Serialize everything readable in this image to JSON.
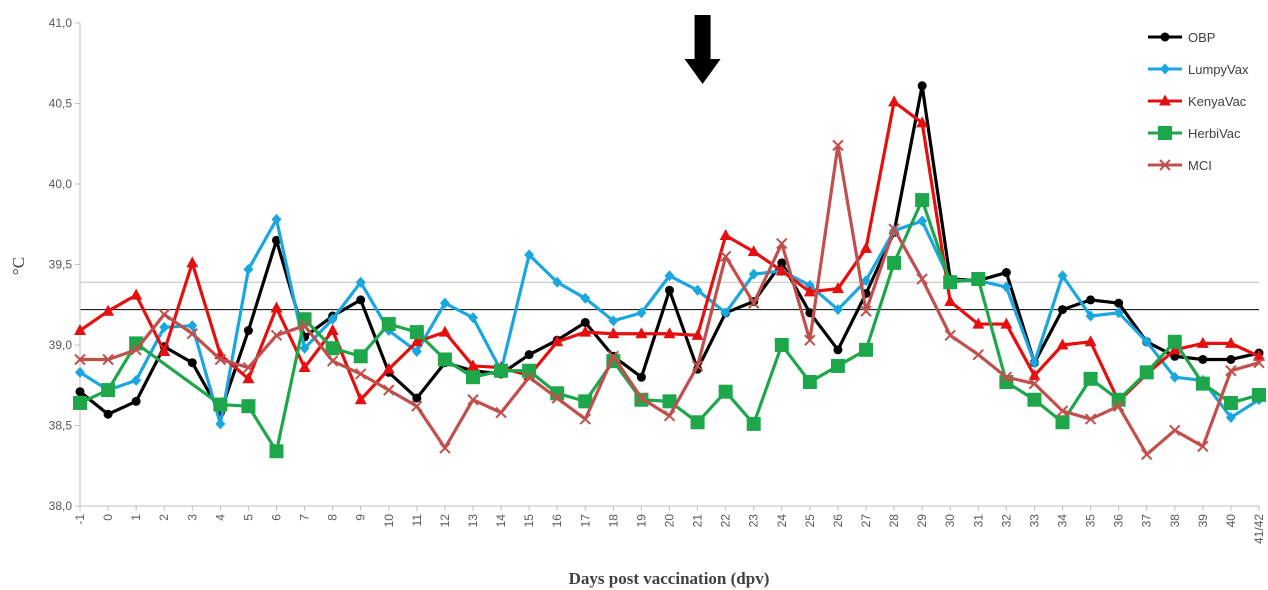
{
  "chart_data": {
    "type": "line",
    "title": "",
    "xlabel": "Days post vaccination (dpv)",
    "ylabel": "°C",
    "ylim": [
      38.0,
      41.0
    ],
    "yticks": [
      "38,0",
      "38,5",
      "39,0",
      "39,5",
      "40,0",
      "40,5",
      "41,0"
    ],
    "categories": [
      "-1",
      "0",
      "1",
      "2",
      "3",
      "4",
      "5",
      "6",
      "7",
      "8",
      "9",
      "10",
      "11",
      "12",
      "13",
      "14",
      "15",
      "16",
      "17",
      "18",
      "19",
      "20",
      "21",
      "22",
      "23",
      "24",
      "25",
      "26",
      "27",
      "28",
      "29",
      "30",
      "31",
      "32",
      "33",
      "34",
      "35",
      "36",
      "37",
      "38",
      "39",
      "40",
      "41/42"
    ],
    "reference_lines": [
      {
        "value": 39.22,
        "color": "#000000"
      },
      {
        "value": 39.39,
        "color": "#bfbfbf"
      }
    ],
    "annotation": {
      "type": "arrow-down",
      "at": "21"
    },
    "legend_position": "top-right",
    "series": [
      {
        "name": "OBP",
        "color": "#000000",
        "marker": "circle",
        "values": [
          38.71,
          38.57,
          38.65,
          38.99,
          38.89,
          38.58,
          39.09,
          39.65,
          39.05,
          39.18,
          39.28,
          38.83,
          38.67,
          38.89,
          38.84,
          38.82,
          38.94,
          39.03,
          39.14,
          38.93,
          38.8,
          39.34,
          38.85,
          39.2,
          39.27,
          39.51,
          39.2,
          38.97,
          39.32,
          39.7,
          40.61,
          39.41,
          39.4,
          39.45,
          38.89,
          39.22,
          39.28,
          39.26,
          39.02,
          38.93,
          38.91,
          38.91,
          38.95
        ]
      },
      {
        "name": "LumpyVax",
        "color": "#1aa7e0",
        "marker": "diamond",
        "values": [
          38.83,
          38.72,
          38.78,
          39.11,
          39.12,
          38.51,
          39.47,
          39.78,
          38.98,
          39.16,
          39.39,
          39.09,
          38.96,
          39.26,
          39.17,
          38.84,
          39.56,
          39.39,
          39.29,
          39.15,
          39.2,
          39.43,
          39.34,
          39.2,
          39.44,
          39.46,
          39.37,
          39.22,
          39.4,
          39.71,
          39.77,
          39.4,
          39.4,
          39.36,
          38.89,
          39.43,
          39.18,
          39.2,
          39.02,
          38.8,
          38.78,
          38.55,
          38.66
        ]
      },
      {
        "name": "KenyaVac",
        "color": "#e50f0f",
        "marker": "triangle",
        "values": [
          39.09,
          39.21,
          39.31,
          38.96,
          39.51,
          38.94,
          38.79,
          39.23,
          38.86,
          39.09,
          38.66,
          38.85,
          39.02,
          39.08,
          38.87,
          38.86,
          38.81,
          39.02,
          39.08,
          39.07,
          39.07,
          39.07,
          39.06,
          39.68,
          39.58,
          39.46,
          39.33,
          39.35,
          39.6,
          40.51,
          40.38,
          39.27,
          39.13,
          39.13,
          38.81,
          39.0,
          39.02,
          38.65,
          38.82,
          38.97,
          39.01,
          39.01,
          38.93
        ]
      },
      {
        "name": "HerbiVac",
        "color": "#1ea64a",
        "marker": "square",
        "values": [
          38.64,
          38.72,
          39.01,
          null,
          null,
          38.63,
          38.62,
          38.34,
          39.16,
          38.98,
          38.93,
          39.13,
          39.08,
          38.91,
          38.8,
          38.84,
          38.84,
          38.7,
          38.65,
          38.9,
          38.66,
          38.65,
          38.52,
          38.71,
          38.51,
          39.0,
          38.77,
          38.87,
          38.97,
          39.51,
          39.9,
          39.39,
          39.41,
          38.77,
          38.66,
          38.52,
          38.79,
          38.66,
          38.83,
          39.02,
          38.76,
          38.64,
          38.69
        ]
      },
      {
        "name": "MCI",
        "color": "#c0504d",
        "marker": "x",
        "values": [
          38.91,
          38.91,
          38.97,
          39.19,
          39.07,
          38.91,
          38.86,
          39.06,
          39.12,
          38.9,
          38.82,
          38.72,
          38.62,
          38.36,
          38.66,
          38.58,
          38.8,
          38.67,
          38.54,
          38.93,
          38.67,
          38.56,
          38.87,
          39.55,
          39.26,
          39.63,
          39.03,
          40.24,
          39.21,
          39.72,
          39.41,
          39.06,
          38.94,
          38.8,
          38.76,
          38.59,
          38.54,
          38.62,
          38.32,
          38.47,
          38.37,
          38.84,
          38.89
        ]
      }
    ]
  }
}
